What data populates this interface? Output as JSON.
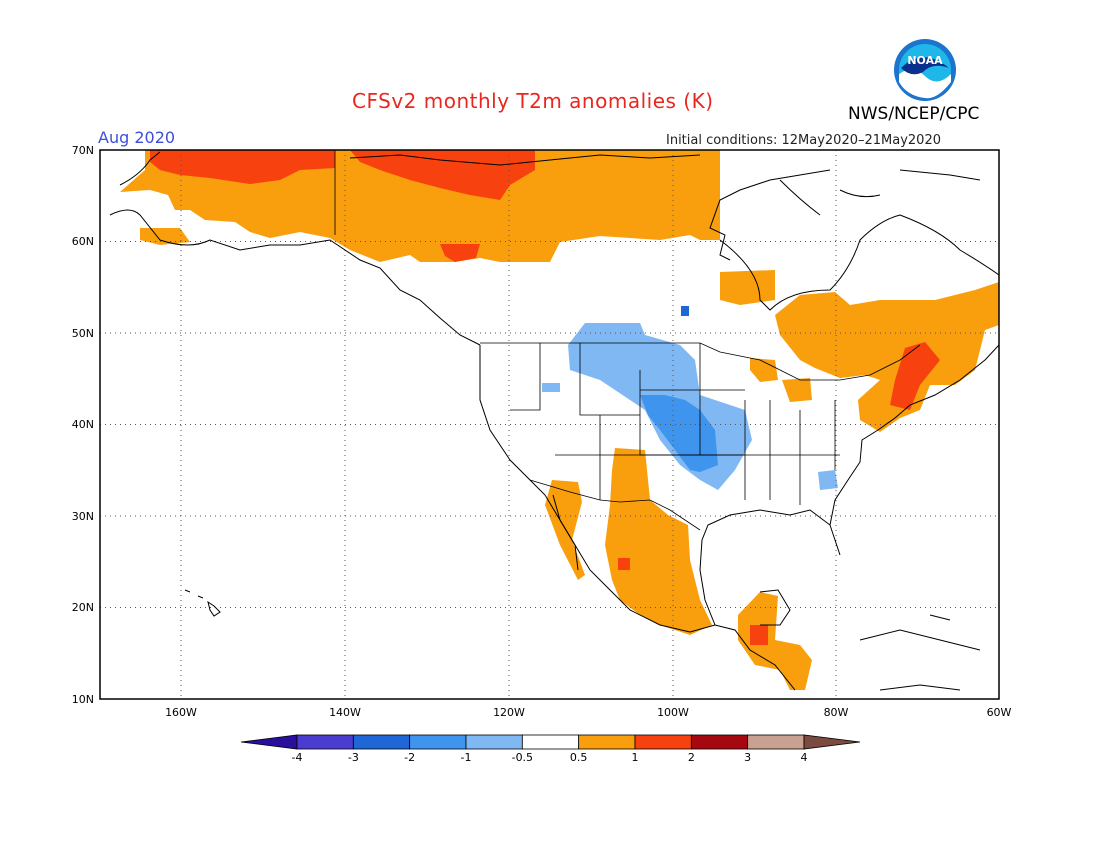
{
  "header": {
    "title": "CFSv2 monthly T2m anomalies (K)",
    "agency": "NWS/NCEP/CPC",
    "month": "Aug 2020",
    "initial_conditions": "Initial conditions: 12May2020–21May2020",
    "logo_text": "NOAA"
  },
  "map": {
    "region": "North America",
    "lat_ticks": [
      "70N",
      "60N",
      "50N",
      "40N",
      "30N",
      "20N",
      "10N"
    ],
    "lon_ticks": [
      "160W",
      "140W",
      "120W",
      "100W",
      "80W",
      "60W"
    ],
    "gridlines": true
  },
  "colorbar": {
    "labels": [
      "-4",
      "-3",
      "-2",
      "-1",
      "-0.5",
      "0.5",
      "1",
      "2",
      "3",
      "4"
    ],
    "colors": [
      "#2a0f9e",
      "#4a3ccf",
      "#1f67d6",
      "#3f94ee",
      "#7fb8f3",
      "#ffffff",
      "#f99e0c",
      "#f7420f",
      "#a5090f",
      "#c9a190",
      "#7a4b3e"
    ]
  },
  "colors": {
    "title": "#e8271f",
    "month": "#3c4fd8",
    "warm_weak": "#f99e0c",
    "warm_mid": "#f7420f",
    "cool_weak": "#7fb8f3",
    "cool_mid": "#3f94ee",
    "cool_strong": "#1f67d6"
  }
}
